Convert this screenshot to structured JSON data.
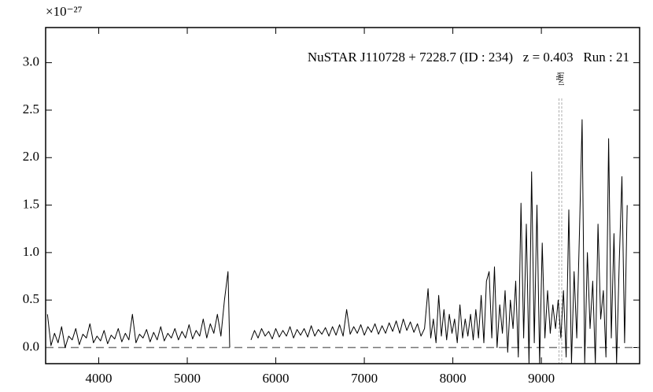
{
  "chart_data": {
    "type": "line",
    "title": "NuSTAR J110728 + 7228.7 (ID : 234)   z = 0.403   Run : 21",
    "y_scale_label": "×10⁻²⁷",
    "xlim": [
      3400,
      10110
    ],
    "ylim": [
      -0.17,
      3.37
    ],
    "xticks": [
      4000,
      5000,
      6000,
      7000,
      8000,
      9000
    ],
    "yticks": [
      {
        "value": 0,
        "label": "0.0"
      },
      0.5,
      {
        "value": 1,
        "label": "1.0"
      },
      1.5,
      {
        "value": 2,
        "label": "2.0"
      },
      2.5,
      {
        "value": 3,
        "label": "3.0"
      }
    ],
    "zero_line": 0,
    "lines": [
      {
        "label": "Hα",
        "x": 9200
      },
      {
        "label": "[NII]",
        "x": 9230
      }
    ],
    "series": [
      {
        "color": "#000000",
        "x": [
          3420,
          3460,
          3500,
          3540,
          3580,
          3620,
          3660,
          3700,
          3740,
          3780,
          3820,
          3860,
          3900,
          3940,
          3980,
          4020,
          4060,
          4100,
          4140,
          4180,
          4220,
          4260,
          4300,
          4340,
          4380,
          4420,
          4460,
          4500,
          4540,
          4580,
          4620,
          4660,
          4700,
          4740,
          4780,
          4820,
          4860,
          4900,
          4940,
          4980,
          5020,
          5060,
          5100,
          5140,
          5180,
          5220,
          5260,
          5300,
          5340,
          5380,
          5420,
          5460,
          5480,
          5600,
          5720,
          5760,
          5800,
          5840,
          5880,
          5920,
          5960,
          6000,
          6040,
          6080,
          6120,
          6160,
          6200,
          6240,
          6280,
          6320,
          6360,
          6400,
          6440,
          6480,
          6520,
          6560,
          6600,
          6640,
          6680,
          6720,
          6760,
          6800,
          6840,
          6880,
          6920,
          6960,
          7000,
          7040,
          7080,
          7120,
          7160,
          7200,
          7240,
          7280,
          7320,
          7360,
          7400,
          7440,
          7480,
          7520,
          7560,
          7600,
          7640,
          7680,
          7720,
          7750,
          7780,
          7810,
          7840,
          7870,
          7900,
          7930,
          7960,
          7990,
          8020,
          8050,
          8080,
          8110,
          8140,
          8170,
          8200,
          8230,
          8260,
          8290,
          8320,
          8350,
          8380,
          8410,
          8440,
          8470,
          8500,
          8530,
          8560,
          8590,
          8620,
          8650,
          8680,
          8710,
          8740,
          8770,
          8800,
          8830,
          8860,
          8890,
          8920,
          8950,
          8980,
          9010,
          9040,
          9070,
          9100,
          9130,
          9160,
          9190,
          9220,
          9250,
          9280,
          9310,
          9340,
          9370,
          9400,
          9430,
          9460,
          9490,
          9520,
          9550,
          9580,
          9610,
          9640,
          9670,
          9700,
          9730,
          9760,
          9790,
          9820,
          9850,
          9880,
          9910,
          9940,
          9970
        ],
        "values": [
          0.35,
          0.02,
          0.15,
          0.05,
          0.22,
          0.0,
          0.12,
          0.08,
          0.2,
          0.03,
          0.14,
          0.1,
          0.25,
          0.05,
          0.12,
          0.07,
          0.18,
          0.04,
          0.13,
          0.09,
          0.2,
          0.06,
          0.15,
          0.08,
          0.35,
          0.05,
          0.14,
          0.1,
          0.19,
          0.06,
          0.16,
          0.08,
          0.22,
          0.07,
          0.15,
          0.1,
          0.2,
          0.08,
          0.17,
          0.1,
          0.24,
          0.09,
          0.18,
          0.12,
          0.3,
          0.1,
          0.25,
          0.15,
          0.35,
          0.12,
          0.5,
          0.8,
          0.0,
          null,
          0.08,
          0.18,
          0.1,
          0.2,
          0.12,
          0.17,
          0.09,
          0.2,
          0.11,
          0.18,
          0.12,
          0.22,
          0.1,
          0.19,
          0.13,
          0.2,
          0.11,
          0.23,
          0.12,
          0.19,
          0.14,
          0.21,
          0.12,
          0.22,
          0.13,
          0.24,
          0.12,
          0.4,
          0.14,
          0.22,
          0.15,
          0.24,
          0.13,
          0.22,
          0.16,
          0.25,
          0.14,
          0.23,
          0.15,
          0.26,
          0.17,
          0.28,
          0.15,
          0.3,
          0.18,
          0.27,
          0.16,
          0.25,
          0.12,
          0.2,
          0.62,
          0.1,
          0.3,
          0.05,
          0.55,
          0.12,
          0.4,
          0.08,
          0.35,
          0.15,
          0.3,
          0.05,
          0.45,
          0.1,
          0.3,
          0.12,
          0.35,
          0.08,
          0.4,
          0.1,
          0.55,
          0.05,
          0.7,
          0.8,
          0.1,
          0.85,
          0.0,
          0.45,
          0.15,
          0.6,
          -0.05,
          0.5,
          0.2,
          0.7,
          -0.1,
          1.52,
          0.1,
          1.3,
          -0.17,
          1.85,
          0.05,
          1.5,
          -0.17,
          1.1,
          0.1,
          0.6,
          0.15,
          0.45,
          0.2,
          0.5,
          0.1,
          0.6,
          -0.1,
          1.45,
          -0.17,
          0.8,
          0.1,
          1.2,
          2.4,
          -0.17,
          1.0,
          0.2,
          0.7,
          -0.17,
          1.3,
          0.3,
          0.6,
          -0.1,
          2.2,
          0.1,
          1.2,
          -0.17,
          0.9,
          1.8,
          0.05,
          1.5
        ]
      }
    ]
  }
}
